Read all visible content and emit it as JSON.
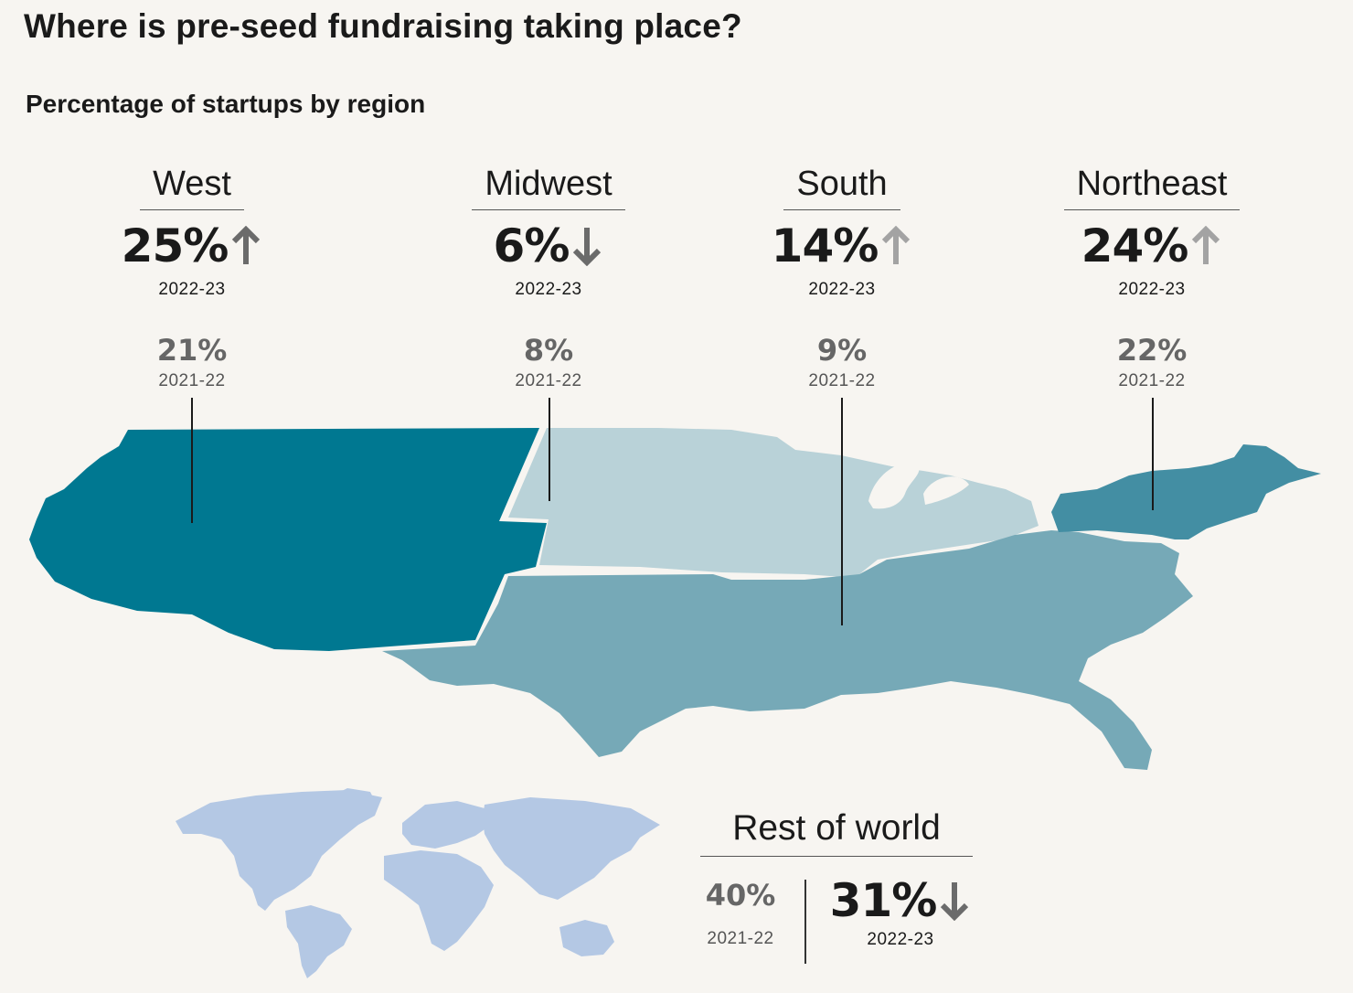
{
  "title": "Where is pre-seed fundraising taking place?",
  "subtitle": "Percentage of startups by region",
  "regions": [
    {
      "name": "West",
      "current": "25%",
      "current_year": "2022-23",
      "previous": "21%",
      "previous_year": "2021-22",
      "trend": "up",
      "arrow_color": "#6b6b6b",
      "fill": "#007891"
    },
    {
      "name": "Midwest",
      "current": "6%",
      "current_year": "2022-23",
      "previous": "8%",
      "previous_year": "2021-22",
      "trend": "down",
      "arrow_color": "#6b6b6b",
      "fill": "#b9d2d8"
    },
    {
      "name": "South",
      "current": "14%",
      "current_year": "2022-23",
      "previous": "9%",
      "previous_year": "2021-22",
      "trend": "up",
      "arrow_color": "#a3a3a3",
      "fill": "#76a9b7"
    },
    {
      "name": "Northeast",
      "current": "24%",
      "current_year": "2022-23",
      "previous": "22%",
      "previous_year": "2021-22",
      "trend": "up",
      "arrow_color": "#a3a3a3",
      "fill": "#438ea3"
    }
  ],
  "rest_of_world": {
    "name": "Rest of world",
    "previous": "40%",
    "previous_year": "2021-22",
    "current": "31%",
    "current_year": "2022-23",
    "trend": "down",
    "arrow_color": "#6b6b6b",
    "fill": "#b4c8e4"
  },
  "colors": {
    "background": "#f7f5f1",
    "text": "#1a1a1a",
    "muted": "#666666"
  }
}
